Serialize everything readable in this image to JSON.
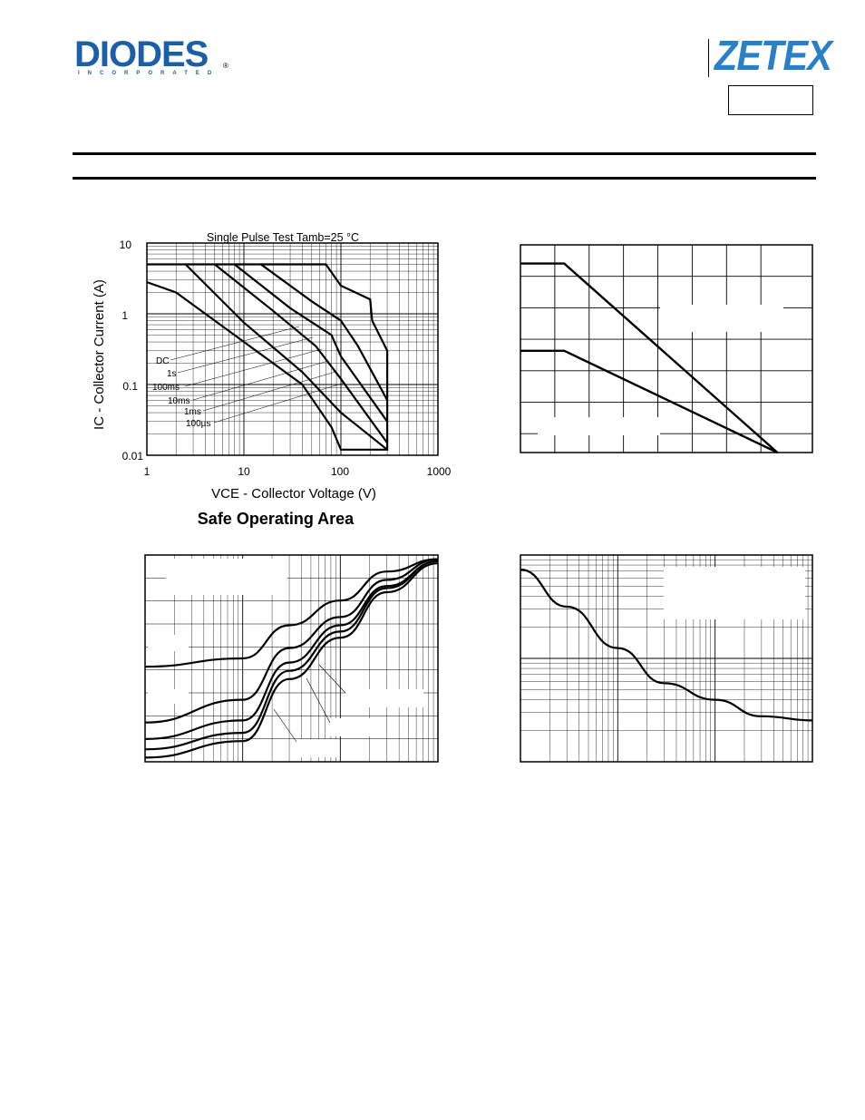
{
  "header": {
    "diodes_logo": "DIODES",
    "diodes_sub": "INCORPORATED",
    "diodes_reg": "®",
    "zetex_logo": "ZETEX",
    "part_number": ""
  },
  "colors": {
    "diodes_blue": "#1b5fa8",
    "zetex_blue": "#2a80c8",
    "ink": "#000000"
  },
  "chart_data": [
    {
      "type": "line",
      "title": "Safe Operating Area",
      "subtitle": "Single Pulse Test Tamb=25 °C",
      "xlabel": "VCE - Collector Voltage (V)",
      "ylabel": "IC - Collector Current (A)",
      "x_scale": "log",
      "y_scale": "log",
      "xlim": [
        1,
        1000
      ],
      "ylim": [
        0.01,
        10
      ],
      "xticks": [
        "1",
        "10",
        "100",
        "1000"
      ],
      "yticks": [
        "0.01",
        "0.1",
        "1",
        "10"
      ],
      "grid": true,
      "series": [
        {
          "name": "DC",
          "x": [
            1,
            2,
            10,
            40,
            80,
            100,
            300,
            300
          ],
          "y": [
            2.8,
            2.0,
            0.4,
            0.1,
            0.025,
            0.012,
            0.012,
            0.3
          ]
        },
        {
          "name": "1s",
          "x": [
            1,
            2.5,
            10,
            40,
            100,
            300
          ],
          "y": [
            5,
            5,
            0.75,
            0.15,
            0.04,
            0.012
          ]
        },
        {
          "name": "100ms",
          "x": [
            2.5,
            5,
            20,
            55,
            100,
            300
          ],
          "y": [
            5,
            5,
            1.1,
            0.35,
            0.12,
            0.015
          ]
        },
        {
          "name": "10ms",
          "x": [
            5,
            8,
            30,
            80,
            100,
            300
          ],
          "y": [
            5,
            5,
            1.2,
            0.5,
            0.25,
            0.03
          ]
        },
        {
          "name": "1ms",
          "x": [
            8,
            15,
            50,
            100,
            150,
            300
          ],
          "y": [
            5,
            5,
            1.5,
            0.8,
            0.35,
            0.06
          ]
        },
        {
          "name": "100µs",
          "x": [
            15,
            70,
            100,
            200,
            210,
            300
          ],
          "y": [
            5,
            5,
            2.5,
            1.6,
            0.8,
            0.3
          ]
        }
      ],
      "labels": [
        "DC",
        "1s",
        "100ms",
        "10ms",
        "1ms",
        "100µs"
      ]
    },
    {
      "type": "line",
      "title": "",
      "series": [
        {
          "x": [
            0,
            0.15,
            0.88
          ],
          "y": [
            0.91,
            0.91,
            0.0
          ]
        },
        {
          "x": [
            0,
            0.15,
            0.88
          ],
          "y": [
            0.49,
            0.49,
            0.0
          ]
        }
      ],
      "xlim": [
        0,
        1
      ],
      "ylim": [
        0,
        1
      ],
      "grid": true
    },
    {
      "type": "line",
      "title": "",
      "x_scale": "log",
      "series": [
        {
          "x": [
            1,
            10,
            30,
            100,
            300,
            1000
          ],
          "y": [
            0.46,
            0.5,
            0.66,
            0.78,
            0.92,
            0.98
          ]
        },
        {
          "x": [
            1,
            10,
            30,
            100,
            300,
            1000
          ],
          "y": [
            0.19,
            0.3,
            0.55,
            0.7,
            0.88,
            0.98
          ]
        },
        {
          "x": [
            1,
            10,
            30,
            100,
            300,
            1000
          ],
          "y": [
            0.11,
            0.2,
            0.48,
            0.66,
            0.85,
            0.97
          ]
        },
        {
          "x": [
            1,
            10,
            30,
            100,
            300,
            1000
          ],
          "y": [
            0.06,
            0.14,
            0.44,
            0.63,
            0.84,
            0.97
          ]
        },
        {
          "x": [
            1,
            10,
            30,
            100,
            300,
            1000
          ],
          "y": [
            0.02,
            0.1,
            0.4,
            0.6,
            0.82,
            0.96
          ]
        }
      ],
      "grid": true
    },
    {
      "type": "line",
      "title": "",
      "x_scale": "log",
      "series": [
        {
          "x": [
            1,
            3,
            10,
            30,
            100,
            300,
            1000
          ],
          "y": [
            0.93,
            0.75,
            0.55,
            0.38,
            0.3,
            0.22,
            0.2
          ]
        }
      ],
      "grid": true
    }
  ]
}
